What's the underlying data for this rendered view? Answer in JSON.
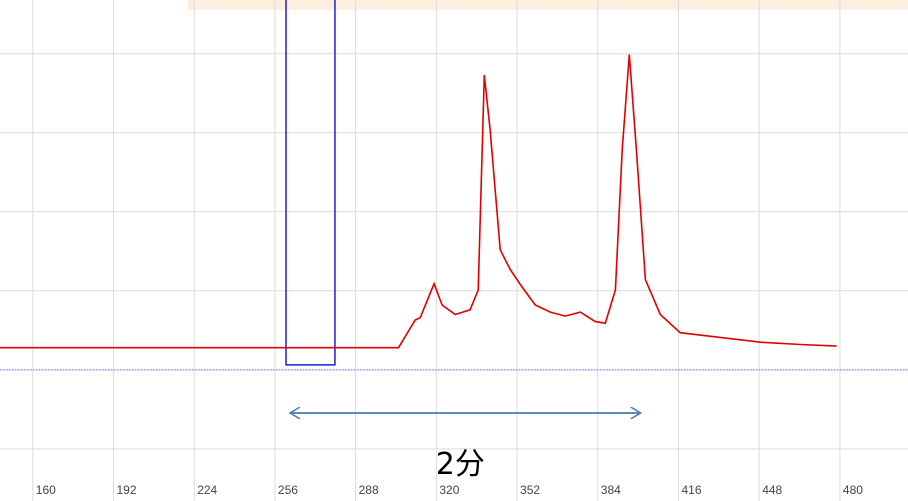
{
  "chart_data": {
    "type": "line",
    "x": [
      147,
      305,
      311.6,
      313.6,
      319.1,
      322.3,
      327.5,
      333.4,
      336.6,
      339.0,
      341.3,
      345.3,
      349.3,
      353.3,
      359.2,
      365.2,
      371.1,
      377.1,
      383.0,
      387.0,
      391.0,
      393.7,
      396.5,
      399.3,
      402.9,
      408.8,
      416.7,
      432.6,
      448.5,
      464.4,
      478.7
    ],
    "series": [
      {
        "color": "#e00000",
        "values": [
          0.28,
          0.28,
          0.63,
          0.66,
          1.09,
          0.82,
          0.7,
          0.76,
          1.01,
          3.73,
          3.04,
          1.52,
          1.27,
          1.08,
          0.82,
          0.73,
          0.68,
          0.73,
          0.61,
          0.59,
          1.01,
          2.78,
          3.99,
          2.78,
          1.14,
          0.7,
          0.47,
          0.41,
          0.35,
          0.32,
          0.3
        ]
      }
    ],
    "xlim": [
      147,
      507
    ],
    "xticks": [
      160,
      192,
      224,
      256,
      288,
      320,
      352,
      384,
      416,
      448,
      480
    ],
    "ylim": [
      -1.66,
      4.68
    ],
    "yticks": [
      -1,
      0,
      1,
      2,
      3,
      4
    ],
    "grid": true,
    "baseline": 0,
    "selection_x": [
      260.4,
      279.8
    ],
    "annotation": {
      "text": "2分",
      "x_range": [
        262,
        401
      ]
    }
  }
}
